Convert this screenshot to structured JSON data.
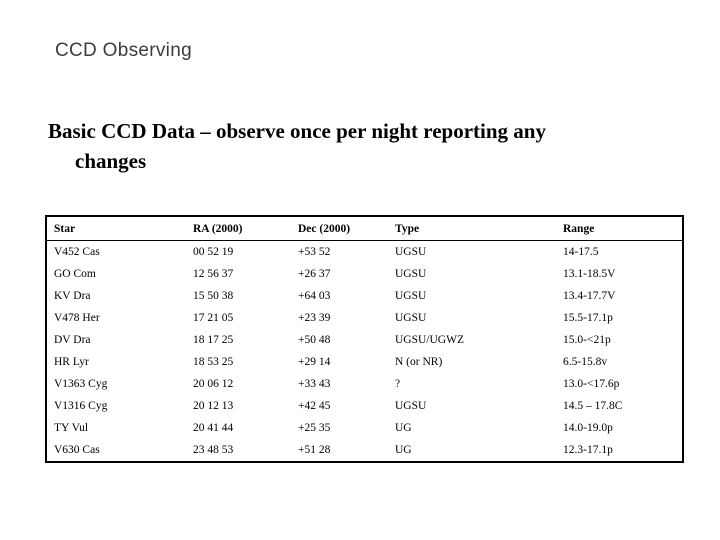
{
  "slide": {
    "title": "CCD Observing",
    "title_color": "#3d3d3d",
    "subtitle": {
      "line1": "Basic CCD Data – observe once per night reporting any",
      "line2": "changes"
    }
  },
  "table": {
    "columns": [
      "Star",
      "RA (2000)",
      "Dec (2000)",
      "Type",
      "Range"
    ],
    "rows": [
      [
        "V452 Cas",
        "00 52 19",
        "+53 52",
        "UGSU",
        "14-17.5"
      ],
      [
        "GO Com",
        "12 56 37",
        "+26 37",
        "UGSU",
        "13.1-18.5V"
      ],
      [
        "KV Dra",
        "15 50 38",
        "+64 03",
        "UGSU",
        "13.4-17.7V"
      ],
      [
        "V478 Her",
        "17 21 05",
        "+23 39",
        "UGSU",
        "15.5-17.1p"
      ],
      [
        "DV Dra",
        "18 17 25",
        "+50 48",
        "UGSU/UGWZ",
        "15.0-<21p"
      ],
      [
        "HR Lyr",
        "18 53 25",
        "+29 14",
        "N (or NR)",
        "6.5-15.8v"
      ],
      [
        "V1363 Cyg",
        "20 06 12",
        "+33 43",
        "?",
        "13.0-<17.6p"
      ],
      [
        "V1316 Cyg",
        "20 12 13",
        "+42 45",
        "UGSU",
        "14.5 – 17.8C"
      ],
      [
        "TY Vul",
        "20 41 44",
        "+25 35",
        "UG",
        "14.0-19.0p"
      ],
      [
        "V630 Cas",
        "23 48 53",
        "+51 28",
        "UG",
        "12.3-17.1p"
      ]
    ]
  }
}
